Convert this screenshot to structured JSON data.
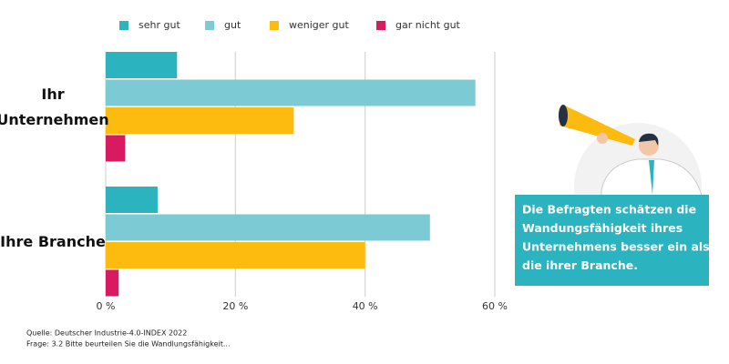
{
  "chart_data": {
    "type": "barh",
    "categories": [
      "Ihr Unternehmen",
      "Ihre Branche"
    ],
    "series": [
      {
        "name": "sehr gut",
        "color": "#2bb3c0",
        "values": [
          11,
          8
        ]
      },
      {
        "name": "gut",
        "color": "#7ccbd4",
        "values": [
          57,
          50
        ]
      },
      {
        "name": "weniger gut",
        "color": "#fdbb0f",
        "values": [
          29,
          40
        ]
      },
      {
        "name": "gar nicht gut",
        "color": "#d81b60",
        "values": [
          3,
          2
        ]
      }
    ],
    "xlim": [
      0,
      60
    ],
    "xticks": [
      {
        "value": 0,
        "label": "0 %"
      },
      {
        "value": 20,
        "label": "20 %"
      },
      {
        "value": 40,
        "label": "40 %"
      },
      {
        "value": 60,
        "label": "60 %"
      }
    ],
    "grid": true,
    "legend": "top",
    "annotation": [
      "Die Befragten schätzen die",
      "Wandungsfähigkeit ihres",
      "Unternehmens  besser ein als",
      "die ihrer Branche."
    ],
    "source": "Quelle: Deutscher Industrie-4.0-INDEX 2022",
    "note": "Frage: 3.2 Bitte beurteilen Sie die Wandlungsfähigkeit..."
  }
}
